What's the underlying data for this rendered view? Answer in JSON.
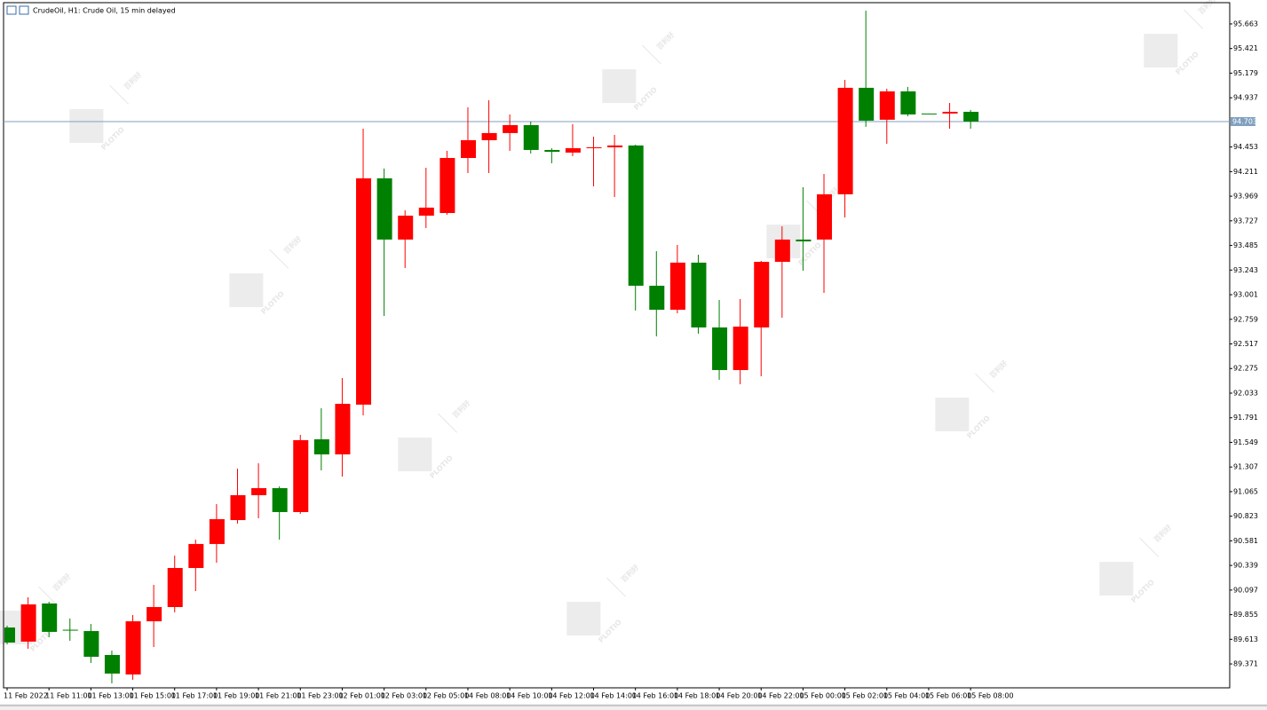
{
  "chart_data": {
    "type": "candlestick",
    "title": "CrudeOil, H1: Crude Oil, 15 min delayed",
    "watermark": {
      "logo": "PLOTIO",
      "text": "百利好"
    },
    "categories": [
      "11 Feb 2022",
      null,
      "11 Feb 11:00",
      null,
      "11 Feb 13:00",
      null,
      "11 Feb 15:00",
      null,
      "11 Feb 17:00",
      null,
      "11 Feb 19:00",
      null,
      "11 Feb 21:00",
      null,
      "11 Feb 23:00",
      null,
      "12 Feb 01:00",
      null,
      "12 Feb 03:00",
      null,
      "12 Feb 05:00",
      null,
      "14 Feb 08:00",
      null,
      "14 Feb 10:00",
      null,
      "14 Feb 12:00",
      null,
      "14 Feb 14:00",
      null,
      "14 Feb 16:00",
      null,
      "14 Feb 18:00",
      null,
      "14 Feb 20:00",
      null,
      "14 Feb 22:00",
      null,
      "15 Feb 00:00",
      null,
      "15 Feb 02:00",
      null,
      "15 Feb 04:00",
      null,
      "15 Feb 06:00",
      null,
      "15 Feb 08:00"
    ],
    "series": [
      {
        "up_color": "#ff0000",
        "down_color": "#008000",
        "open": [
          89.729,
          89.59,
          89.965,
          89.707,
          89.694,
          89.459,
          89.267,
          89.79,
          89.93,
          90.314,
          90.55,
          90.785,
          91.03,
          91.099,
          90.864,
          91.579,
          91.431,
          91.92,
          94.145,
          93.543,
          93.778,
          93.804,
          94.345,
          94.52,
          94.59,
          94.668,
          94.424,
          94.398,
          94.441,
          94.45,
          94.468,
          93.089,
          92.853,
          93.316,
          92.679,
          92.26,
          92.679,
          93.324,
          93.543,
          93.543,
          93.988,
          95.035,
          94.721,
          95.0,
          94.782,
          94.782,
          94.799
        ],
        "high": [
          89.747,
          90.026,
          89.982,
          89.817,
          89.764,
          89.502,
          89.852,
          90.148,
          90.436,
          90.593,
          90.942,
          91.291,
          91.344,
          91.117,
          91.623,
          91.885,
          92.181,
          94.633,
          94.241,
          93.831,
          94.249,
          94.415,
          94.843,
          94.913,
          94.773,
          94.703,
          94.441,
          94.677,
          94.555,
          94.572,
          94.476,
          93.429,
          93.49,
          93.394,
          92.949,
          92.958,
          93.333,
          93.673,
          94.057,
          94.188,
          95.113,
          95.794,
          95.026,
          95.044,
          94.782,
          94.886,
          94.817
        ],
        "low": [
          89.563,
          89.52,
          89.633,
          89.598,
          89.38,
          89.18,
          89.215,
          89.537,
          89.878,
          90.087,
          90.366,
          90.75,
          90.803,
          90.593,
          90.846,
          91.274,
          91.213,
          91.815,
          92.792,
          93.263,
          93.656,
          93.787,
          94.197,
          94.197,
          94.415,
          94.389,
          94.293,
          94.363,
          94.066,
          93.961,
          92.845,
          92.591,
          92.818,
          92.618,
          92.164,
          92.12,
          92.199,
          92.775,
          93.237,
          93.019,
          93.761,
          94.651,
          94.485,
          94.755,
          94.78,
          94.633,
          94.633
        ],
        "close": [
          89.581,
          89.956,
          89.686,
          89.699,
          89.441,
          89.276,
          89.79,
          89.93,
          90.314,
          90.55,
          90.794,
          91.03,
          91.099,
          90.864,
          91.571,
          91.431,
          91.928,
          94.145,
          93.543,
          93.778,
          93.857,
          94.345,
          94.52,
          94.59,
          94.668,
          94.424,
          94.406,
          94.441,
          94.45,
          94.468,
          93.089,
          92.853,
          93.316,
          92.679,
          92.26,
          92.687,
          93.324,
          93.543,
          93.525,
          93.988,
          95.035,
          94.712,
          95.0,
          94.773,
          94.78,
          94.799,
          94.703
        ]
      }
    ],
    "ylim": [
      89.136,
      95.872
    ],
    "yticks": [
      89.371,
      89.613,
      89.855,
      90.097,
      90.339,
      90.581,
      90.823,
      91.065,
      91.307,
      91.549,
      91.791,
      92.033,
      92.275,
      92.517,
      92.759,
      93.001,
      93.243,
      93.485,
      93.727,
      93.969,
      94.211,
      94.453,
      94.937,
      95.179,
      95.421,
      95.663
    ],
    "current_price": 94.703,
    "current_price_color": "#7f9fbf",
    "grid": false
  }
}
